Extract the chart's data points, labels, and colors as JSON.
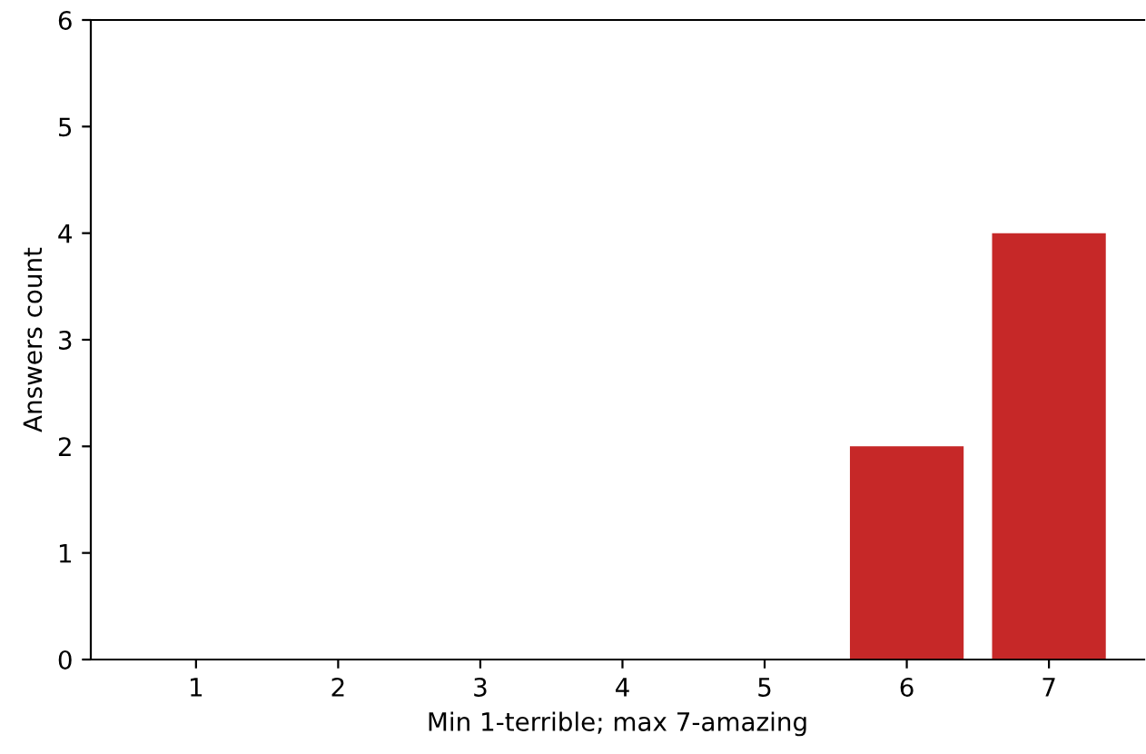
{
  "chart_data": {
    "type": "bar",
    "xlabel": "Min 1-terrible; max 7-amazing",
    "ylabel": "Answers count",
    "categories": [
      "1",
      "2",
      "3",
      "4",
      "5",
      "6",
      "7"
    ],
    "values": [
      0,
      0,
      0,
      0,
      0,
      2,
      4
    ],
    "color": "#c62828",
    "ylim": [
      0,
      6
    ],
    "yticks": [
      0,
      1,
      2,
      3,
      4,
      5,
      6
    ],
    "grid": false,
    "legend": false
  }
}
